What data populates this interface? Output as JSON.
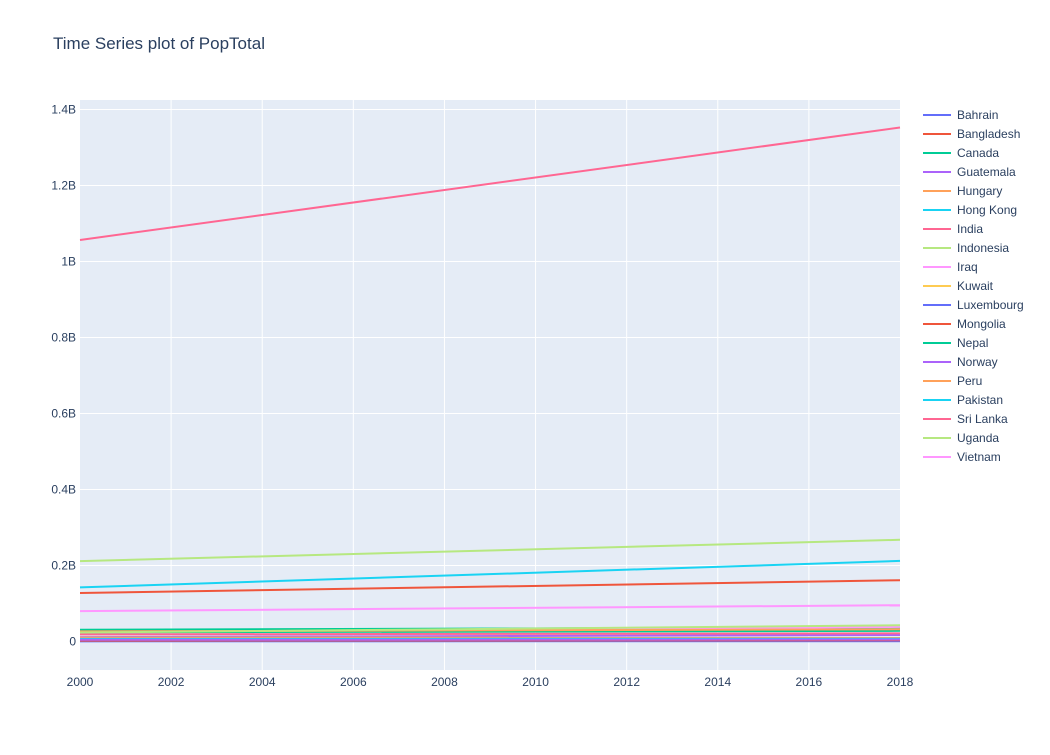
{
  "chart_data": {
    "type": "line",
    "title": "Time Series plot of PopTotal",
    "xlabel": "",
    "ylabel": "",
    "xlim": [
      2000,
      2018
    ],
    "ylim": [
      -75000000,
      1425000000
    ],
    "x_ticks": [
      2000,
      2002,
      2004,
      2006,
      2008,
      2010,
      2012,
      2014,
      2016,
      2018
    ],
    "y_ticks": [
      {
        "value": 0,
        "label": "0"
      },
      {
        "value": 200000000,
        "label": "0.2B"
      },
      {
        "value": 400000000,
        "label": "0.4B"
      },
      {
        "value": 600000000,
        "label": "0.6B"
      },
      {
        "value": 800000000,
        "label": "0.8B"
      },
      {
        "value": 1000000000,
        "label": "1B"
      },
      {
        "value": 1200000000,
        "label": "1.2B"
      },
      {
        "value": 1400000000,
        "label": "1.4B"
      }
    ],
    "grid": true,
    "legend_position": "right",
    "plot_background": "#e5ecf6",
    "x": [
      2000,
      2018
    ],
    "series": [
      {
        "name": "Bahrain",
        "color": "#636efa",
        "values": [
          665000,
          1570000
        ]
      },
      {
        "name": "Bangladesh",
        "color": "#ef553b",
        "values": [
          127700000,
          161400000
        ]
      },
      {
        "name": "Canada",
        "color": "#00cc96",
        "values": [
          30700000,
          37100000
        ]
      },
      {
        "name": "Guatemala",
        "color": "#ab63fa",
        "values": [
          11700000,
          17200000
        ]
      },
      {
        "name": "Hungary",
        "color": "#ffa15a",
        "values": [
          10200000,
          9700000
        ]
      },
      {
        "name": "Hong Kong",
        "color": "#19d3f3",
        "values": [
          6800000,
          7400000
        ]
      },
      {
        "name": "India",
        "color": "#ff6692",
        "values": [
          1056600000,
          1352600000
        ]
      },
      {
        "name": "Indonesia",
        "color": "#b6e880",
        "values": [
          211500000,
          267700000
        ]
      },
      {
        "name": "Iraq",
        "color": "#ff97ff",
        "values": [
          23500000,
          38400000
        ]
      },
      {
        "name": "Kuwait",
        "color": "#fecb52",
        "values": [
          2000000,
          4100000
        ]
      },
      {
        "name": "Luxembourg",
        "color": "#636efa",
        "values": [
          436000,
          604000
        ]
      },
      {
        "name": "Mongolia",
        "color": "#ef553b",
        "values": [
          2400000,
          3170000
        ]
      },
      {
        "name": "Nepal",
        "color": "#00cc96",
        "values": [
          23900000,
          28100000
        ]
      },
      {
        "name": "Norway",
        "color": "#ab63fa",
        "values": [
          4490000,
          5340000
        ]
      },
      {
        "name": "Peru",
        "color": "#ffa15a",
        "values": [
          26500000,
          32000000
        ]
      },
      {
        "name": "Pakistan",
        "color": "#19d3f3",
        "values": [
          142300000,
          212200000
        ]
      },
      {
        "name": "Sri Lanka",
        "color": "#ff6692",
        "values": [
          18800000,
          21200000
        ]
      },
      {
        "name": "Uganda",
        "color": "#b6e880",
        "values": [
          23700000,
          42700000
        ]
      },
      {
        "name": "Vietnam",
        "color": "#ff97ff",
        "values": [
          79900000,
          95500000
        ]
      }
    ]
  }
}
